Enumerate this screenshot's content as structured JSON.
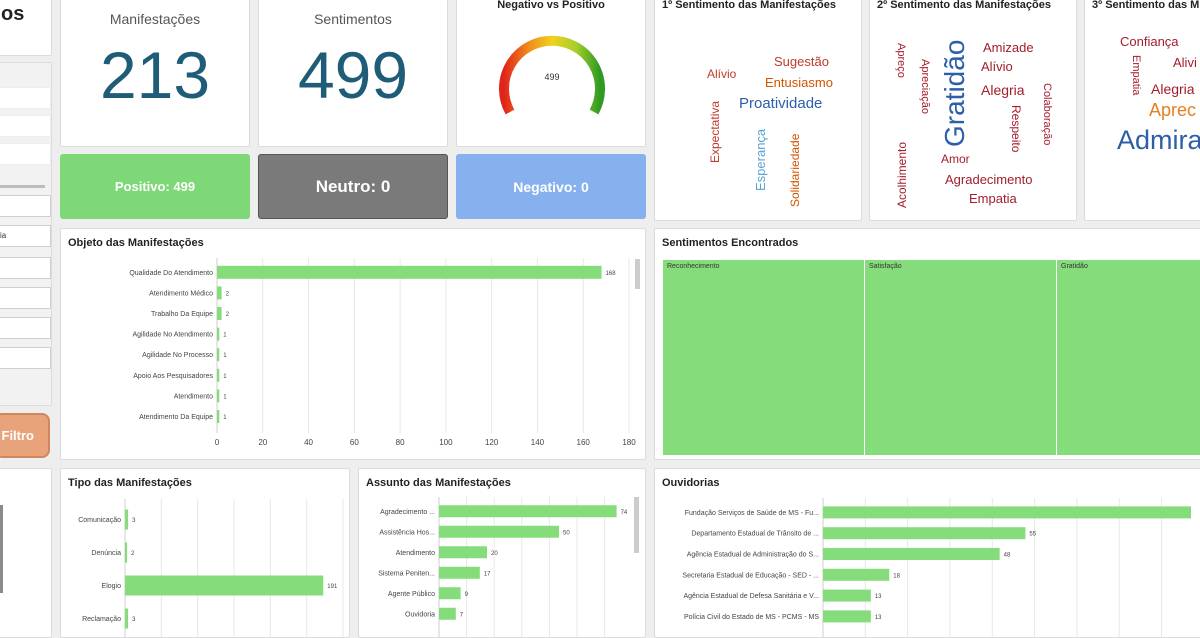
{
  "sidebar": {
    "title_fragment": "os",
    "filter_fragment": "ia",
    "filter_button": "Filtro"
  },
  "kpis": {
    "manifestacoes": {
      "label": "Manifestações",
      "value": "213"
    },
    "sentimentos": {
      "label": "Sentimentos",
      "value": "499"
    }
  },
  "gauge": {
    "title": "Negativo vs Positivo",
    "value_label": "499",
    "value": 499
  },
  "sentiment_pills": {
    "positive": "Positivo: 499",
    "neutral": "Neutro: 0",
    "negative": "Negativo: 0"
  },
  "colors": {
    "accent_blue": "#1f5c78",
    "positive": "#7fd877",
    "neutral": "#7a7a7a",
    "negative": "#86b0ee",
    "bar": "#85dc7a"
  },
  "clouds": {
    "first": {
      "title": "1º Sentimento das Manifestações",
      "words": [
        {
          "text": "Sugestão",
          "color": "#c0392b"
        },
        {
          "text": "Alívio",
          "color": "#c0392b"
        },
        {
          "text": "Entusiasmo",
          "color": "#d35400"
        },
        {
          "text": "Proatividade",
          "color": "#2c5fa8"
        },
        {
          "text": "Expectativa",
          "color": "#c0392b"
        },
        {
          "text": "Esperança",
          "color": "#5ba3d6"
        },
        {
          "text": "Solidariedade",
          "color": "#d35400"
        }
      ]
    },
    "second": {
      "title": "2º Sentimento das Manifestações",
      "words": [
        {
          "text": "Apreço",
          "color": "#a31d2b"
        },
        {
          "text": "Apreciação",
          "color": "#a31d2b"
        },
        {
          "text": "Gratidão",
          "color": "#2c5fa8"
        },
        {
          "text": "Amizade",
          "color": "#a31d2b"
        },
        {
          "text": "Alívio",
          "color": "#a31d2b"
        },
        {
          "text": "Alegria",
          "color": "#a31d2b"
        },
        {
          "text": "Respeito",
          "color": "#a31d2b"
        },
        {
          "text": "Colaboração",
          "color": "#a31d2b"
        },
        {
          "text": "Acolhimento",
          "color": "#a31d2b"
        },
        {
          "text": "Amor",
          "color": "#a31d2b"
        },
        {
          "text": "Agradecimento",
          "color": "#a31d2b"
        },
        {
          "text": "Empatia",
          "color": "#a31d2b"
        }
      ]
    },
    "third": {
      "title": "3º Sentimento das M",
      "words": [
        {
          "text": "Confiança",
          "color": "#a31d2b"
        },
        {
          "text": "Empatia",
          "color": "#a31d2b"
        },
        {
          "text": "Alivi",
          "color": "#a31d2b"
        },
        {
          "text": "Alegria",
          "color": "#a31d2b"
        },
        {
          "text": "Aprec",
          "color": "#e67e22"
        },
        {
          "text": "Admira",
          "color": "#2c5fa8"
        }
      ]
    }
  },
  "objeto": {
    "title": "Objeto das Manifestações",
    "chart_data": {
      "type": "bar",
      "orientation": "horizontal",
      "categories": [
        "Qualidade Do Atendimento",
        "Atendimento Médico",
        "Trabalho Da Equipe",
        "Agilidade No Atendimento",
        "Agilidade No Processo",
        "Apoio Aos Pesquisadores",
        "Atendimento",
        "Atendimento Da Equipe"
      ],
      "values": [
        168,
        2,
        2,
        1,
        1,
        1,
        1,
        1
      ],
      "value_labels": [
        "168",
        "2",
        "2",
        "1",
        "1",
        "1",
        "1",
        "1"
      ],
      "xlim": [
        0,
        180
      ],
      "xticks": [
        "0",
        "20",
        "40",
        "60",
        "80",
        "100",
        "120",
        "140",
        "160",
        "180"
      ]
    }
  },
  "sentimentos_encontrados": {
    "title": "Sentimentos Encontrados",
    "chart_data": {
      "type": "heatmap",
      "categories": [
        "Reconhecimento",
        "Satisfação",
        "Gratidão"
      ]
    }
  },
  "tipo": {
    "title": "Tipo das Manifestações",
    "chart_data": {
      "type": "bar",
      "orientation": "horizontal",
      "categories": [
        "Comunicação",
        "Denúncia",
        "Elogio",
        "Reclamação"
      ],
      "values": [
        3,
        2,
        191,
        3
      ],
      "value_labels": [
        "3",
        "2",
        "191",
        "3"
      ],
      "xlim": [
        0,
        210
      ]
    }
  },
  "assunto": {
    "title": "Assunto das Manifestações",
    "chart_data": {
      "type": "bar",
      "orientation": "horizontal",
      "categories": [
        "Agradecimento ...",
        "Assistência Hos...",
        "Atendimento",
        "Sistema Peniten...",
        "Agente Público",
        "Ouvidoria"
      ],
      "values": [
        74,
        50,
        20,
        17,
        9,
        7
      ],
      "value_labels": [
        "74",
        "50",
        "20",
        "17",
        "9",
        "7"
      ],
      "xlim": [
        0,
        80
      ]
    }
  },
  "ouvidorias": {
    "title": "Ouvidorias",
    "chart_data": {
      "type": "bar",
      "orientation": "horizontal",
      "categories": [
        "Fundação Serviços de Saúde de MS - Fu...",
        "Departamento Estadual de Trânsito de ...",
        "Agência Estadual de Administração do S...",
        "Secretaria Estadual de Educação - SED - ...",
        "Agência Estadual de Defesa Sanitária e V...",
        "Polícia Civil do Estado de MS - PCMS - MS"
      ],
      "values": [
        100,
        55,
        48,
        18,
        13,
        13
      ],
      "value_labels": [
        "",
        "55",
        "48",
        "18",
        "13",
        "13"
      ],
      "xlim": [
        0,
        150
      ]
    }
  }
}
